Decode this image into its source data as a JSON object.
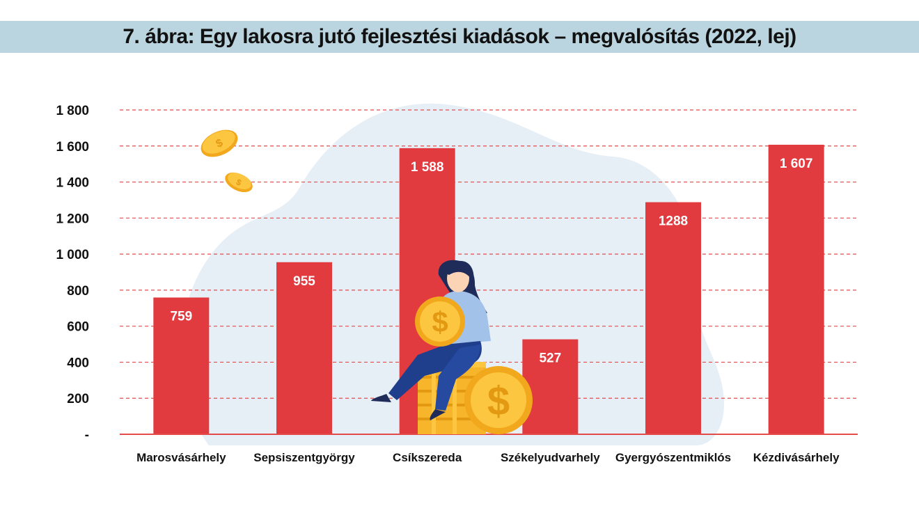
{
  "header": {
    "title": "7. ábra: Egy lakosra jutó fejlesztési kiadások – megvalósítás (2022, lej)"
  },
  "colors": {
    "title_band": "#bad5df",
    "bar": "#e13a3f",
    "grid": "#e34b4b",
    "blob": "#e6eef6",
    "coin": "#f6b52a"
  },
  "chart_data": {
    "type": "bar",
    "title": "7. ábra: Egy lakosra jutó fejlesztési kiadások – megvalósítás (2022, lej)",
    "categories": [
      "Marosvásárhely",
      "Sepsiszentgyörgy",
      "Csíkszereda",
      "Székelyudvarhely",
      "Gyergyószentmiklós",
      "Kézdivásárhely"
    ],
    "values": [
      759,
      955,
      1588,
      527,
      1288,
      1607
    ],
    "value_labels": [
      "759",
      "955",
      "1 588",
      "527",
      "1288",
      "1 607"
    ],
    "ylim": [
      0,
      1800
    ],
    "yticks": [
      0,
      200,
      400,
      600,
      800,
      1000,
      1200,
      1400,
      1600,
      1800
    ],
    "ytick_labels": [
      "-",
      "200",
      "400",
      "600",
      "800",
      "1 000",
      "1 200",
      "1 400",
      "1 600",
      "1 800"
    ],
    "grid": true,
    "grid_style": "dashed",
    "xlabel": "",
    "ylabel": ""
  }
}
